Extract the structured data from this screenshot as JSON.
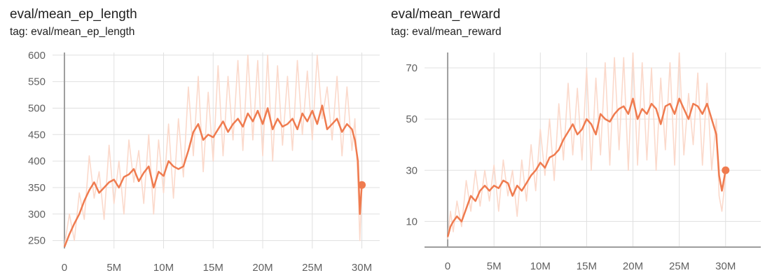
{
  "charts": [
    {
      "title": "eval/mean_ep_length",
      "tag": "tag: eval/mean_ep_length"
    },
    {
      "title": "eval/mean_reward",
      "tag": "tag: eval/mean_reward"
    }
  ],
  "colors": {
    "smoothed": "#ef7b4f",
    "raw": "#fbd9cb",
    "grid": "#e0e0e0",
    "axis": "#9e9e9e",
    "tick_text": "#616161"
  },
  "chart_data": [
    {
      "type": "line",
      "title": "eval/mean_ep_length",
      "subtitle": "tag: eval/mean_ep_length",
      "xlabel": "",
      "ylabel": "",
      "xlim": [
        -1.2,
        31.8
      ],
      "ylim": [
        235,
        605
      ],
      "xticks": [
        0,
        5,
        10,
        15,
        20,
        25,
        30
      ],
      "xtick_labels": [
        "0",
        "5M",
        "10M",
        "15M",
        "20M",
        "25M",
        "30M"
      ],
      "yticks": [
        250,
        300,
        350,
        400,
        450,
        500,
        550,
        600
      ],
      "grid": true,
      "x_unit": "M steps",
      "series": [
        {
          "role": "smoothed",
          "x": [
            0,
            0.5,
            1,
            1.5,
            2,
            2.5,
            3,
            3.5,
            4,
            4.5,
            5,
            5.5,
            6,
            6.5,
            7,
            7.5,
            8,
            8.5,
            9,
            9.5,
            10,
            10.5,
            11,
            11.5,
            12,
            12.5,
            13,
            13.5,
            14,
            14.5,
            15,
            15.5,
            16,
            16.5,
            17,
            17.5,
            18,
            18.5,
            19,
            19.5,
            20,
            20.5,
            21,
            21.5,
            22,
            22.5,
            23,
            23.5,
            24,
            24.5,
            25,
            25.5,
            26,
            26.5,
            27,
            27.5,
            28,
            28.5,
            29,
            29.3,
            29.6,
            29.8,
            30
          ],
          "y": [
            238,
            262,
            282,
            300,
            325,
            345,
            360,
            340,
            350,
            360,
            365,
            350,
            370,
            375,
            385,
            362,
            378,
            390,
            350,
            380,
            372,
            400,
            390,
            385,
            390,
            420,
            455,
            470,
            440,
            450,
            445,
            460,
            475,
            455,
            470,
            480,
            465,
            490,
            475,
            495,
            470,
            500,
            460,
            480,
            465,
            470,
            480,
            460,
            490,
            475,
            495,
            470,
            505,
            460,
            470,
            480,
            455,
            470,
            460,
            440,
            400,
            300,
            355
          ]
        },
        {
          "role": "raw",
          "x": [
            0,
            0.5,
            1,
            1.5,
            2,
            2.5,
            3,
            3.5,
            4,
            4.5,
            5,
            5.5,
            6,
            6.5,
            7,
            7.5,
            8,
            8.5,
            9,
            9.5,
            10,
            10.5,
            11,
            11.5,
            12,
            12.5,
            13,
            13.5,
            14,
            14.5,
            15,
            15.5,
            16,
            16.5,
            17,
            17.5,
            18,
            18.5,
            19,
            19.5,
            20,
            20.5,
            21,
            21.5,
            22,
            22.5,
            23,
            23.5,
            24,
            24.5,
            25,
            25.5,
            26,
            26.5,
            27,
            27.5,
            28,
            28.5,
            29,
            29.3,
            29.6,
            29.8,
            30
          ],
          "y": [
            240,
            300,
            250,
            340,
            290,
            410,
            330,
            380,
            290,
            430,
            320,
            400,
            300,
            440,
            360,
            420,
            320,
            450,
            300,
            440,
            340,
            470,
            330,
            480,
            370,
            540,
            410,
            560,
            380,
            530,
            400,
            580,
            410,
            560,
            440,
            590,
            420,
            600,
            440,
            590,
            410,
            600,
            400,
            580,
            430,
            560,
            420,
            590,
            450,
            570,
            440,
            600,
            480,
            540,
            440,
            560,
            410,
            540,
            420,
            480,
            360,
            250,
            350
          ]
        }
      ]
    },
    {
      "type": "line",
      "title": "eval/mean_reward",
      "subtitle": "tag: eval/mean_reward",
      "xlabel": "",
      "ylabel": "",
      "xlim": [
        -2.5,
        33.8
      ],
      "ylim": [
        0,
        76
      ],
      "xticks": [
        0,
        5,
        10,
        15,
        20,
        25,
        30
      ],
      "xtick_labels": [
        "0",
        "5M",
        "10M",
        "15M",
        "20M",
        "25M",
        "30M"
      ],
      "yticks": [
        10,
        30,
        50,
        70
      ],
      "grid": true,
      "x_unit": "M steps",
      "series": [
        {
          "role": "smoothed",
          "x": [
            0,
            0.3,
            0.6,
            1,
            1.5,
            2,
            2.5,
            3,
            3.5,
            4,
            4.5,
            5,
            5.5,
            6,
            6.5,
            7,
            7.5,
            8,
            8.5,
            9,
            9.5,
            10,
            10.5,
            11,
            11.5,
            12,
            12.5,
            13,
            13.5,
            14,
            14.5,
            15,
            15.5,
            16,
            16.5,
            17,
            17.5,
            18,
            18.5,
            19,
            19.5,
            20,
            20.5,
            21,
            21.5,
            22,
            22.5,
            23,
            23.5,
            24,
            24.5,
            25,
            25.5,
            26,
            26.5,
            27,
            27.5,
            28,
            28.5,
            29,
            29.3,
            29.6,
            30
          ],
          "y": [
            4,
            8,
            10,
            12,
            10,
            15,
            20,
            18,
            22,
            24,
            22,
            24,
            23,
            26,
            25,
            20,
            24,
            22,
            25,
            28,
            30,
            33,
            31,
            35,
            36,
            38,
            42,
            45,
            48,
            44,
            46,
            50,
            48,
            44,
            52,
            50,
            49,
            52,
            54,
            55,
            52,
            58,
            50,
            54,
            52,
            56,
            54,
            48,
            55,
            56,
            52,
            58,
            54,
            50,
            56,
            55,
            52,
            56,
            50,
            44,
            28,
            22,
            30
          ]
        },
        {
          "role": "raw",
          "x": [
            0,
            0.3,
            0.6,
            1,
            1.5,
            2,
            2.5,
            3,
            3.5,
            4,
            4.5,
            5,
            5.5,
            6,
            6.5,
            7,
            7.5,
            8,
            8.5,
            9,
            9.5,
            10,
            10.5,
            11,
            11.5,
            12,
            12.5,
            13,
            13.5,
            14,
            14.5,
            15,
            15.5,
            16,
            16.5,
            17,
            17.5,
            18,
            18.5,
            19,
            19.5,
            20,
            20.5,
            21,
            21.5,
            22,
            22.5,
            23,
            23.5,
            24,
            24.5,
            25,
            25.5,
            26,
            26.5,
            27,
            27.5,
            28,
            28.5,
            29,
            29.3,
            29.6,
            30
          ],
          "y": [
            3,
            14,
            6,
            18,
            8,
            26,
            14,
            30,
            16,
            30,
            18,
            32,
            14,
            34,
            20,
            30,
            12,
            34,
            18,
            40,
            22,
            46,
            28,
            50,
            26,
            56,
            34,
            64,
            36,
            62,
            34,
            70,
            30,
            66,
            36,
            72,
            32,
            74,
            38,
            74,
            30,
            76,
            32,
            72,
            34,
            70,
            30,
            66,
            38,
            72,
            32,
            76,
            36,
            60,
            40,
            68,
            32,
            64,
            30,
            50,
            20,
            14,
            28
          ]
        }
      ]
    }
  ]
}
